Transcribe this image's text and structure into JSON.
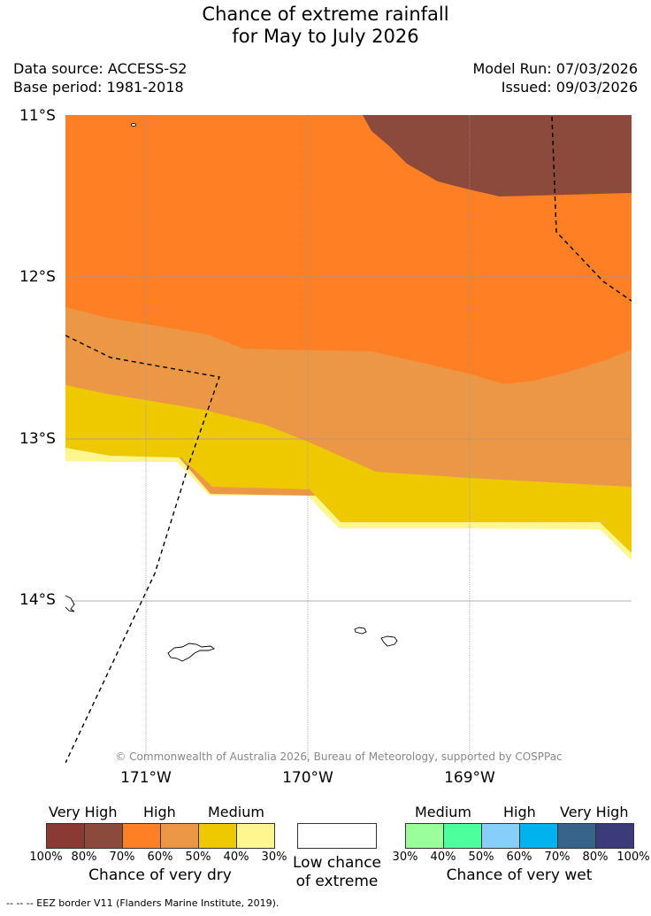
{
  "title": {
    "line1": "Chance of extreme rainfall",
    "line2": "for May to July 2026"
  },
  "meta": {
    "data_source": "Data source: ACCESS-S2",
    "base_period": "Base period: 1981-2018",
    "model_run": "Model Run: 07/03/2026",
    "issued": "Issued: 09/03/2026"
  },
  "map": {
    "lat_labels": [
      "11°S",
      "12°S",
      "13°S",
      "14°S"
    ],
    "lon_labels": [
      "171°W",
      "170°W",
      "169°W"
    ],
    "credit": "© Commonwealth of Australia 2026, Bureau of Meteorology, supported by COSPPac",
    "colors": {
      "very_high_dry": "#8b4a3b",
      "high_dry_70": "#ff7f24",
      "medium_dry_60": "#eb9745",
      "medium_dry_50": "#eec900",
      "low_dry": "#fff68f"
    }
  },
  "legend": {
    "dry": {
      "headers": [
        "Very High",
        "High",
        "Medium"
      ],
      "colors": [
        "#8b3a33",
        "#8b4a3b",
        "#ff7f24",
        "#eb9745",
        "#eec900",
        "#fff68f"
      ],
      "ticks": [
        "100%",
        "80%",
        "70%",
        "60%",
        "50%",
        "40%",
        "30%"
      ],
      "caption": "Chance of very dry"
    },
    "low": {
      "color": "#ffffff",
      "caption_line1": "Low chance",
      "caption_line2": "of extreme"
    },
    "wet": {
      "headers": [
        "Medium",
        "High",
        "Very High"
      ],
      "colors": [
        "#9aff9a",
        "#4eff9e",
        "#87cefa",
        "#00b2ee",
        "#36648b",
        "#3b3b7a"
      ],
      "ticks": [
        "30%",
        "40%",
        "50%",
        "60%",
        "70%",
        "80%",
        "100%"
      ],
      "caption": "Chance of very wet"
    }
  },
  "footer": "--  --  -- EEZ border V11 (Flanders Marine Institute, 2019)."
}
